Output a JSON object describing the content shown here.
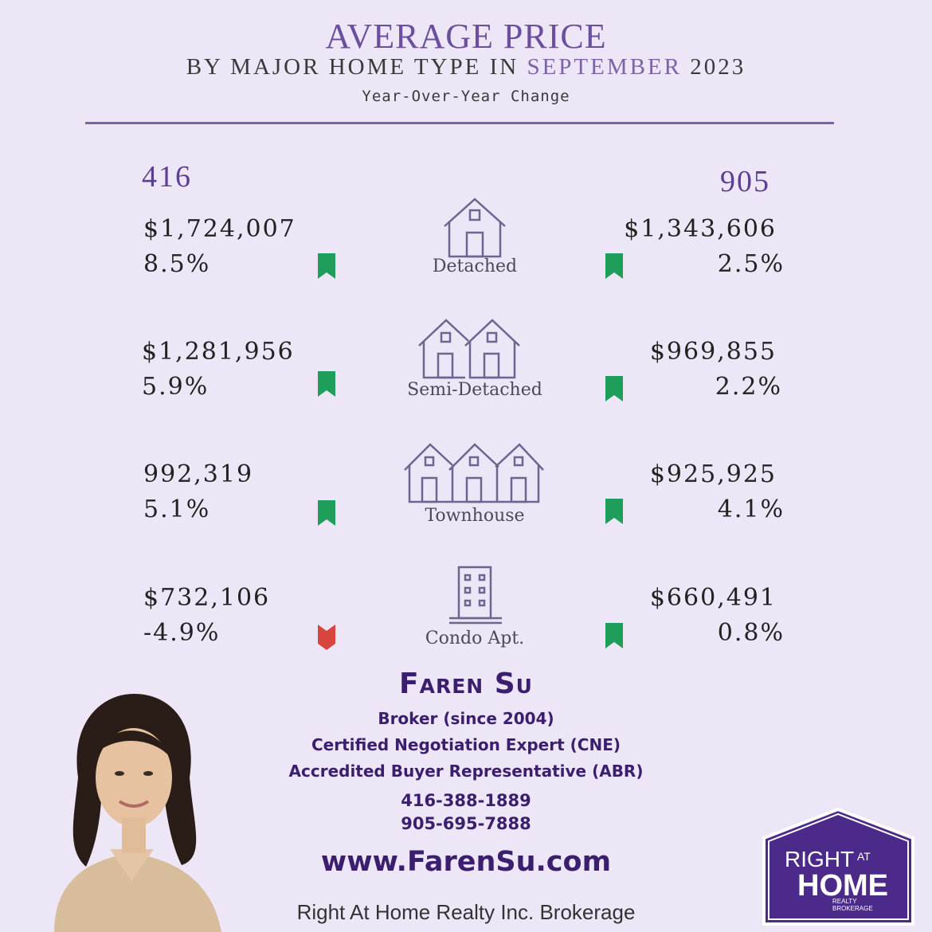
{
  "header": {
    "title": "AVERAGE PRICE",
    "subtitle_prefix": "BY MAJOR HOME TYPE IN ",
    "subtitle_month": "SEPTEMBER",
    "subtitle_year": " 2023",
    "subtitle2": "Year-Over-Year Change"
  },
  "regions": {
    "left": "416",
    "right": "905"
  },
  "rows": [
    {
      "type": "Detached",
      "left_price": "$1,724,007",
      "left_pct": "8.5%",
      "left_dir": "up",
      "right_price": "$1,343,606",
      "right_pct": "2.5%",
      "right_dir": "up",
      "icon": "house-icon"
    },
    {
      "type": "Semi-Detached",
      "left_price": "$1,281,956",
      "left_pct": "5.9%",
      "left_dir": "up",
      "right_price": "$969,855",
      "right_pct": "2.2%",
      "right_dir": "up",
      "icon": "semi-detached-house-icon"
    },
    {
      "type": "Townhouse",
      "left_price": "992,319",
      "left_pct": "5.1%",
      "left_dir": "up",
      "right_price": "$925,925",
      "right_pct": "4.1%",
      "right_dir": "up",
      "icon": "townhouse-icon"
    },
    {
      "type": "Condo Apt.",
      "left_price": "$732,106",
      "left_pct": "-4.9%",
      "left_dir": "down",
      "right_price": "$660,491",
      "right_pct": "0.8%",
      "right_dir": "up",
      "icon": "condo-building-icon"
    }
  ],
  "colors": {
    "up": "#1f9d5a",
    "down": "#d8453f",
    "accent": "#6b4f9e",
    "brand": "#3b1f6e"
  },
  "agent": {
    "name": "Faren Su",
    "line1": "Broker (since 2004)",
    "line2": "Certified Negotiation Expert (CNE)",
    "line3": "Accredited Buyer Representative (ABR)",
    "phone1": "416-388-1889",
    "phone2": "905-695-7888",
    "website": "www.FarenSu.com",
    "brokerage": "Right At Home Realty Inc. Brokerage"
  },
  "logo": {
    "line1": "RIGHT",
    "line2": "AT",
    "line3": "HOME",
    "line4": "REALTY",
    "line5": "BROKERAGE"
  }
}
